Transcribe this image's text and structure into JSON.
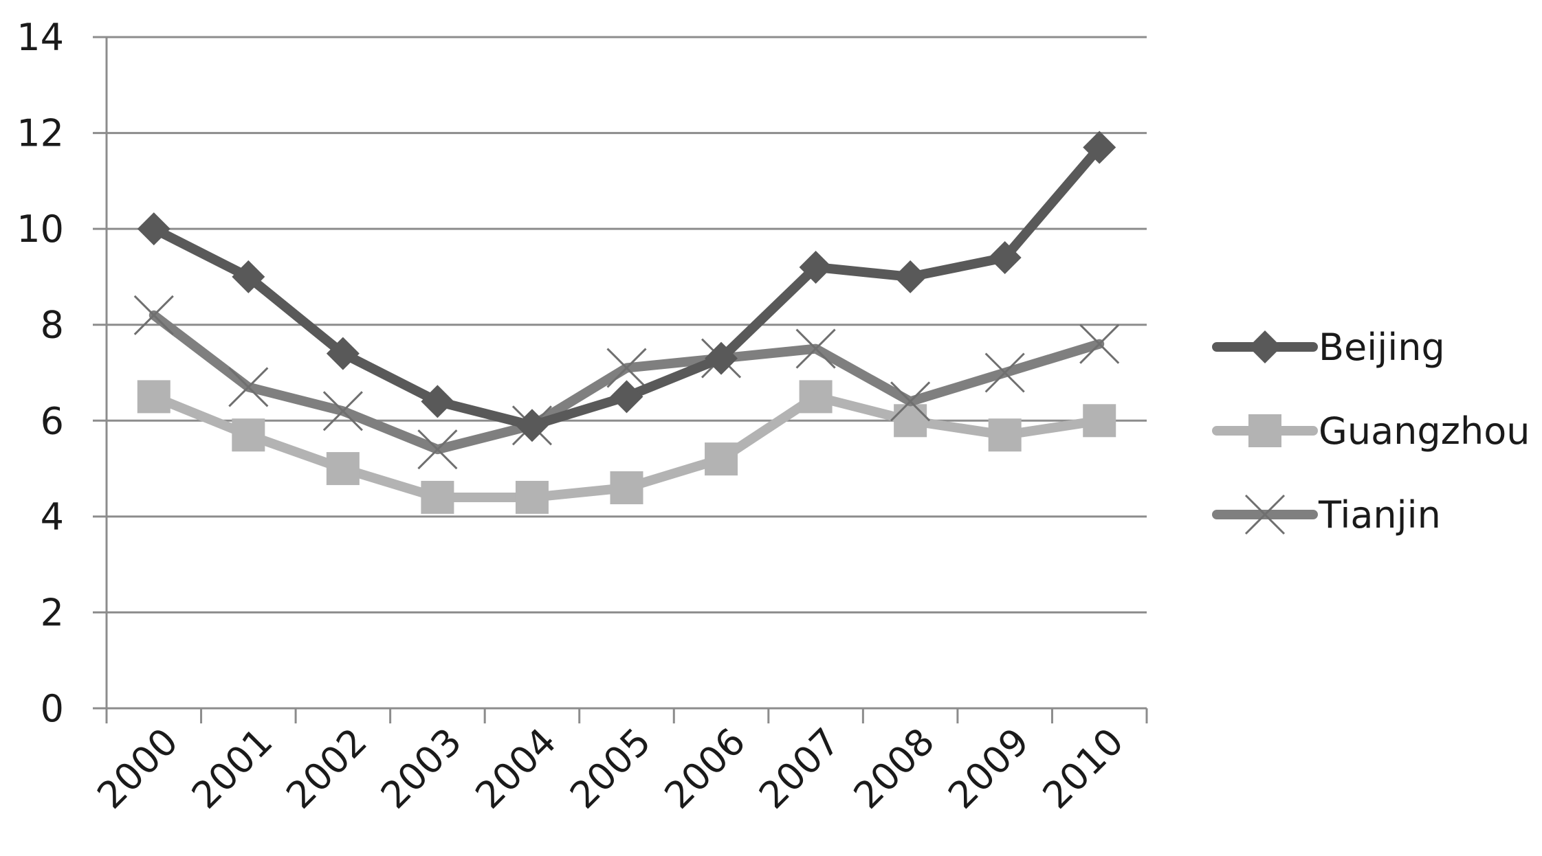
{
  "chart_data": {
    "type": "line",
    "title": "",
    "xlabel": "",
    "ylabel": "",
    "categories": [
      "2000",
      "2001",
      "2002",
      "2003",
      "2004",
      "2005",
      "2006",
      "2007",
      "2008",
      "2009",
      "2010"
    ],
    "ylim": [
      0,
      14
    ],
    "yticks": [
      "0",
      "2",
      "4",
      "6",
      "8",
      "10",
      "12",
      "14"
    ],
    "grid": true,
    "legend_position": "right",
    "series": [
      {
        "name": "Beijing",
        "marker": "diamond",
        "color": "#595959",
        "values": [
          10.0,
          9.0,
          7.4,
          6.4,
          5.9,
          6.5,
          7.3,
          9.2,
          9.0,
          9.4,
          11.7
        ]
      },
      {
        "name": "Guangzhou",
        "marker": "square",
        "color": "#b3b3b3",
        "values": [
          6.5,
          5.7,
          5.0,
          4.4,
          4.4,
          4.6,
          5.2,
          6.5,
          6.0,
          5.7,
          6.0
        ]
      },
      {
        "name": "Tianjin",
        "marker": "x",
        "color": "#7f7f7f",
        "values": [
          8.2,
          6.7,
          6.2,
          5.4,
          5.9,
          7.1,
          7.3,
          7.5,
          6.4,
          7.0,
          7.6
        ]
      }
    ]
  }
}
